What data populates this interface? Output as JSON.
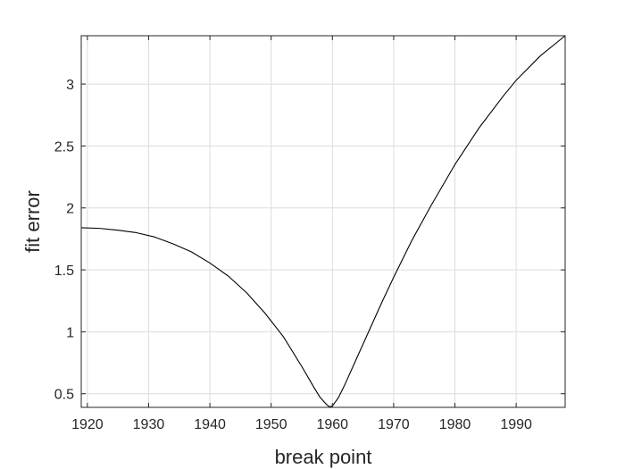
{
  "chart_data": {
    "type": "line",
    "title": "",
    "xlabel": "break point",
    "ylabel": "fit error",
    "xlim": [
      1919,
      1998
    ],
    "ylim": [
      0.39,
      3.39
    ],
    "grid": true,
    "x_ticks": [
      1920,
      1930,
      1940,
      1950,
      1960,
      1970,
      1980,
      1990
    ],
    "x_tick_labels": [
      "1920",
      "1930",
      "1940",
      "1950",
      "1960",
      "1970",
      "1980",
      "1990"
    ],
    "y_ticks": [
      0.5,
      1,
      1.5,
      2,
      2.5,
      3
    ],
    "y_tick_labels": [
      "0.5",
      "1",
      "1.5",
      "2",
      "2.5",
      "3"
    ],
    "series": [
      {
        "color": "#000000",
        "x": [
          1919,
          1922,
          1925,
          1928,
          1931,
          1934,
          1937,
          1940,
          1943,
          1946,
          1949,
          1952,
          1955,
          1957,
          1958,
          1959,
          1959.5,
          1960,
          1961,
          1962,
          1964,
          1966,
          1968,
          1970,
          1973,
          1976,
          1980,
          1984,
          1988,
          1990,
          1994,
          1998
        ],
        "values": [
          1.84,
          1.835,
          1.82,
          1.8,
          1.765,
          1.71,
          1.645,
          1.555,
          1.45,
          1.315,
          1.15,
          0.96,
          0.72,
          0.55,
          0.47,
          0.415,
          0.395,
          0.4,
          0.47,
          0.57,
          0.79,
          1.01,
          1.23,
          1.44,
          1.74,
          2.01,
          2.35,
          2.65,
          2.91,
          3.03,
          3.23,
          3.39
        ]
      }
    ]
  }
}
